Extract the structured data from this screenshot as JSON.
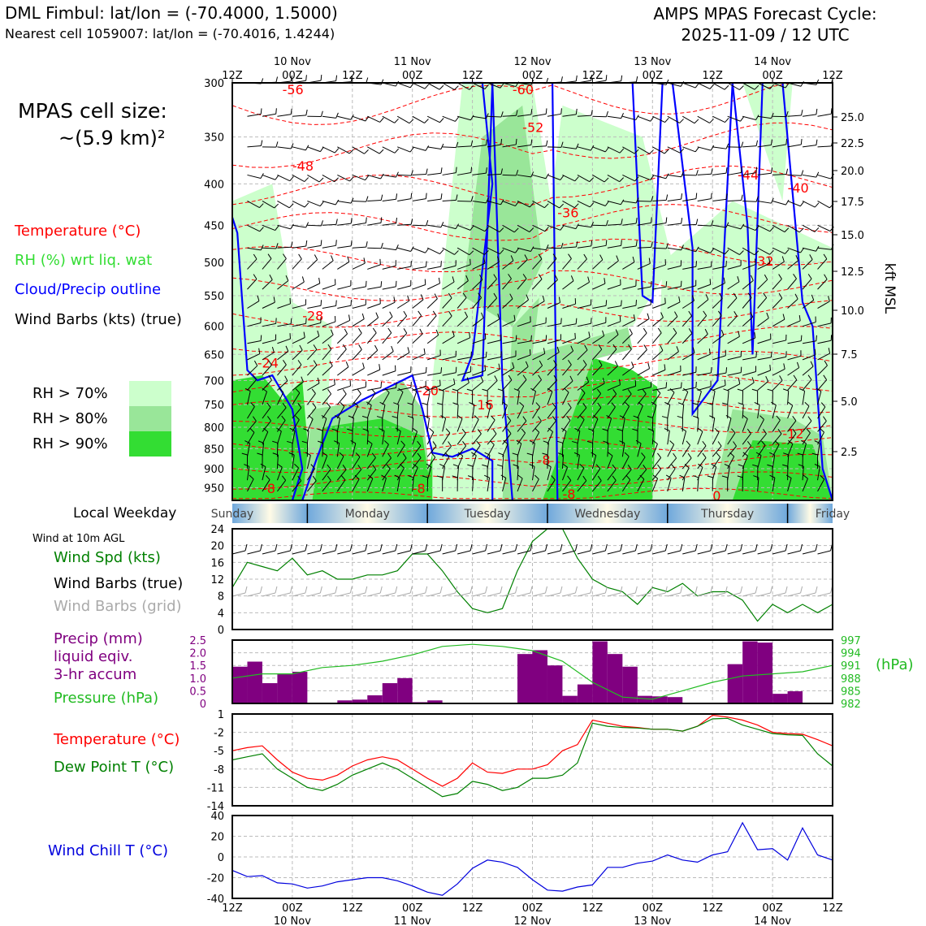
{
  "header": {
    "title_left": "DML Fimbul: lat/lon = (-70.4000, 1.5000)",
    "subtitle_left": "Nearest cell 1059007: lat/lon = (-70.4016, 1.4244)",
    "title_right_line1": "AMPS MPAS Forecast Cycle:",
    "title_right_line2": "2025-11-09 / 12 UTC"
  },
  "cell_size": {
    "line1": "MPAS cell size:",
    "line2": "~(5.9 km)²"
  },
  "legend": {
    "temperature": "Temperature (°C)",
    "rh": "RH (%) wrt liq. wat",
    "cloud": "Cloud/Precip outline",
    "wind": "Wind Barbs (kts) (true)",
    "rh70": "RH > 70%",
    "rh80": "RH > 80%",
    "rh90": "RH > 90%",
    "local_weekday": "Local Weekday",
    "wind_10m": "Wind at 10m AGL",
    "wind_spd": "Wind Spd (kts)",
    "wind_barbs_true": "Wind Barbs (true)",
    "wind_barbs_grid": "Wind Barbs (grid)",
    "precip_1": "Precip (mm)",
    "precip_2": "liquid eqiv.",
    "precip_3": "3-hr accum",
    "pressure": "Pressure (hPa)",
    "pressure_unit": "(hPa)",
    "temp2": "Temperature (°C)",
    "dewpoint": "Dew Point T (°C)",
    "windchill": "Wind Chill T (°C)"
  },
  "colors": {
    "temp": "#ff0000",
    "rh": "#33dd33",
    "cloud": "#0000ff",
    "wind": "#000000",
    "rh70": "#ccffcc",
    "rh80": "#99e699",
    "rh90": "#33dd33",
    "precip": "#800080",
    "pressure": "#22bb22",
    "dewpoint": "#008000",
    "windchill": "#0000dd",
    "grid_barb": "#aaaaaa"
  },
  "time_axis": {
    "top_hour_labels": [
      "12Z",
      "00Z",
      "12Z",
      "00Z",
      "12Z",
      "00Z",
      "12Z",
      "00Z",
      "12Z",
      "00Z",
      "12Z"
    ],
    "day_labels": [
      "10 Nov",
      "11 Nov",
      "12 Nov",
      "13 Nov",
      "14 Nov"
    ],
    "weekdays": [
      "Sunday",
      "Monday",
      "Tuesday",
      "Wednesday",
      "Thursday",
      "Friday"
    ]
  },
  "chart_data": [
    {
      "type": "heatmap",
      "name": "time-height cross section",
      "x_hours_from_start": [
        0,
        120
      ],
      "ylim_hpa": [
        985,
        300
      ],
      "y_ticks_left": [
        "300",
        "350",
        "400",
        "450",
        "500",
        "550",
        "600",
        "650",
        "700",
        "750",
        "800",
        "850",
        "900",
        "950"
      ],
      "y_label_right": "kft MSL",
      "y_ticks_right": [
        "25.0",
        "22.5",
        "20.0",
        "17.5",
        "15.0",
        "12.5",
        "10.0",
        "7.5",
        "5.0",
        "2.5"
      ],
      "temperature_contour_labels": [
        "-56",
        "-60",
        "-52",
        "-48",
        "-44",
        "-40",
        "-36",
        "-32",
        "-28",
        "-24",
        "-20",
        "-16",
        "-12",
        "-8",
        "-8",
        "-8",
        "-8",
        "0"
      ]
    },
    {
      "type": "line",
      "name": "10m wind speed",
      "ylim": [
        0,
        24
      ],
      "y_ticks": [
        "0",
        "4",
        "8",
        "12",
        "16",
        "20",
        "24"
      ],
      "x": [
        0,
        3,
        6,
        9,
        12,
        15,
        18,
        21,
        24,
        27,
        30,
        33,
        36,
        39,
        42,
        45,
        48,
        51,
        54,
        57,
        60,
        63,
        66,
        69,
        72,
        75,
        78,
        81,
        84,
        87,
        90,
        93,
        96,
        99,
        102,
        105,
        108,
        111,
        114,
        117,
        120
      ],
      "values": [
        10,
        16,
        15,
        14,
        17,
        13,
        14,
        12,
        12,
        13,
        13,
        14,
        18,
        18,
        14,
        9,
        5,
        4,
        5,
        14,
        21,
        24,
        24,
        17,
        12,
        10,
        9,
        6,
        10,
        9,
        11,
        8,
        9,
        9,
        7,
        2,
        6,
        4,
        6,
        4,
        6
      ]
    },
    {
      "type": "bar",
      "name": "3-hr precip",
      "ylim": [
        0,
        2.5
      ],
      "y_ticks": [
        "0",
        "0.5",
        "1.0",
        "1.5",
        "2.0",
        "2.5"
      ],
      "x": [
        1.5,
        4.5,
        7.5,
        10.5,
        13.5,
        16.5,
        19.5,
        22.5,
        25.5,
        28.5,
        31.5,
        34.5,
        37.5,
        40.5,
        43.5,
        46.5,
        49.5,
        52.5,
        55.5,
        58.5,
        61.5,
        64.5,
        67.5,
        70.5,
        73.5,
        76.5,
        79.5,
        82.5,
        85.5,
        88.5,
        91.5,
        94.5,
        97.5,
        100.5,
        103.5,
        106.5,
        109.5,
        112.5,
        115.5,
        118.5
      ],
      "values": [
        1.45,
        1.65,
        0.8,
        1.15,
        1.25,
        0,
        0,
        0.12,
        0.15,
        0.32,
        0.8,
        1.0,
        0.05,
        0.12,
        0,
        0,
        0,
        0,
        0,
        1.95,
        2.1,
        1.5,
        0.3,
        0.75,
        2.45,
        1.95,
        1.45,
        0.3,
        0.28,
        0.25,
        0,
        0,
        0,
        1.55,
        2.45,
        2.4,
        0.38,
        0.48,
        0,
        0
      ],
      "pressure_series": {
        "name": "Pressure (hPa)",
        "ylim": [
          982,
          997
        ],
        "y_ticks": [
          "997",
          "994",
          "991",
          "988",
          "985",
          "982"
        ],
        "x": [
          0,
          6,
          12,
          18,
          24,
          30,
          36,
          42,
          48,
          54,
          60,
          66,
          72,
          78,
          84,
          90,
          96,
          102,
          108,
          114,
          120
        ],
        "values": [
          988,
          989,
          989,
          990.5,
          991,
          992,
          993.5,
          995.5,
          996,
          995.5,
          994.5,
          992,
          987,
          983.5,
          983,
          985,
          987,
          988.5,
          989,
          989.5,
          991
        ]
      }
    },
    {
      "type": "line",
      "name": "temperature and dew point",
      "ylim": [
        -14,
        1
      ],
      "y_ticks": [
        "1",
        "-2",
        "-5",
        "-8",
        "-11",
        "-14"
      ],
      "x": [
        0,
        3,
        6,
        9,
        12,
        15,
        18,
        21,
        24,
        27,
        30,
        33,
        36,
        39,
        42,
        45,
        48,
        51,
        54,
        57,
        60,
        63,
        66,
        69,
        72,
        75,
        78,
        81,
        84,
        87,
        90,
        93,
        96,
        99,
        102,
        105,
        108,
        111,
        114,
        117,
        120
      ],
      "series": [
        {
          "name": "Temperature (°C)",
          "values": [
            -5,
            -4.5,
            -4.2,
            -6.5,
            -8.5,
            -9.5,
            -9.8,
            -9,
            -7.5,
            -6.5,
            -6,
            -6.5,
            -8,
            -9.5,
            -10.8,
            -9.5,
            -7,
            -8.5,
            -8.7,
            -8,
            -8,
            -7.3,
            -5,
            -4,
            0,
            -0.5,
            -1,
            -1.2,
            -1.5,
            -1.5,
            -1.8,
            -1,
            0.8,
            0.5,
            0,
            -0.8,
            -2,
            -2.2,
            -2.3,
            -3.2,
            -4.2
          ]
        },
        {
          "name": "Dew Point T (°C)",
          "values": [
            -6.5,
            -6,
            -5.5,
            -8,
            -9.5,
            -11,
            -11.5,
            -10.5,
            -9,
            -8,
            -7,
            -8,
            -9.5,
            -11,
            -12.5,
            -12,
            -10,
            -10.5,
            -11.5,
            -11,
            -9.5,
            -9.5,
            -9,
            -7,
            -0.5,
            -1,
            -1.2,
            -1.3,
            -1.5,
            -1.5,
            -1.8,
            -1,
            0.2,
            0.3,
            -0.8,
            -1.5,
            -2.2,
            -2.4,
            -2.5,
            -5.5,
            -7.5
          ]
        }
      ]
    },
    {
      "type": "line",
      "name": "wind chill",
      "ylim": [
        -40,
        40
      ],
      "y_ticks": [
        "40",
        "20",
        "0",
        "-20",
        "-40"
      ],
      "x": [
        0,
        3,
        6,
        9,
        12,
        15,
        18,
        21,
        24,
        27,
        30,
        33,
        36,
        39,
        42,
        45,
        48,
        51,
        54,
        57,
        60,
        63,
        66,
        69,
        72,
        75,
        78,
        81,
        84,
        87,
        90,
        93,
        96,
        99,
        102,
        105,
        108,
        111,
        114,
        117,
        120
      ],
      "values": [
        -13,
        -19,
        -18,
        -25,
        -26,
        -30,
        -28,
        -24,
        -22,
        -20,
        -20,
        -23,
        -28,
        -34,
        -37,
        -26,
        -11,
        -3,
        -5,
        -10,
        -22,
        -32,
        -33,
        -29,
        -27,
        -10,
        -10,
        -6,
        -4,
        2,
        -3,
        -5,
        2,
        5,
        33,
        7,
        8,
        -3,
        28,
        2,
        -3
      ]
    }
  ]
}
